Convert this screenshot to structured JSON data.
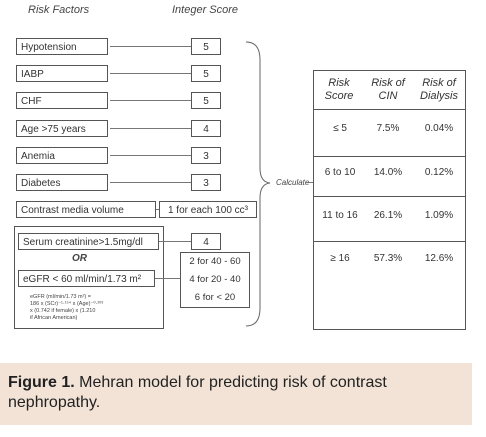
{
  "headers": {
    "risk_factors": "Risk Factors",
    "integer_score": "Integer Score"
  },
  "risk_factors": [
    {
      "label": "Hypotension",
      "score": "5"
    },
    {
      "label": "IABP",
      "score": "5"
    },
    {
      "label": "CHF",
      "score": "5"
    },
    {
      "label": "Age >75 years",
      "score": "4"
    },
    {
      "label": "Anemia",
      "score": "3"
    },
    {
      "label": "Diabetes",
      "score": "3"
    }
  ],
  "contrast": {
    "label": "Contrast media volume",
    "score": "1 for each 100 cc³"
  },
  "renal": {
    "creatinine_label": "Serum creatinine>1.5mg/dl",
    "creatinine_score": "4",
    "or_label": "OR",
    "egfr_label": "eGFR < 60 ml/min/1.73 m²",
    "formula_line1": "eGFR (ml/min/1.73 m²) =",
    "formula_line2": "186 x (SCr)⁻¹·¹⁵⁴ x (Age)⁻⁰·²⁰³",
    "formula_line3": "x (0.742 if female) x (1.210",
    "formula_line4": "if African American)",
    "egfr_scores": [
      "2 for 40 - 60",
      "4 for 20 - 40",
      "6 for < 20"
    ]
  },
  "calculate_label": "Calculate",
  "risk_table": {
    "headers": [
      {
        "line1": "Risk",
        "line2": "Score"
      },
      {
        "line1": "Risk of",
        "line2": "CIN"
      },
      {
        "line1": "Risk of",
        "line2": "Dialysis"
      }
    ],
    "rows": [
      {
        "score": "≤ 5",
        "cin": "7.5%",
        "dialysis": "0.04%"
      },
      {
        "score": "6 to 10",
        "cin": "14.0%",
        "dialysis": "0.12%"
      },
      {
        "score": "11 to 16",
        "cin": "26.1%",
        "dialysis": "1.09%"
      },
      {
        "score": "≥ 16",
        "cin": "57.3%",
        "dialysis": "12.6%"
      }
    ]
  },
  "caption": {
    "label": "Figure 1.",
    "text": " Mehran model for predicting risk of contrast nephropathy."
  }
}
